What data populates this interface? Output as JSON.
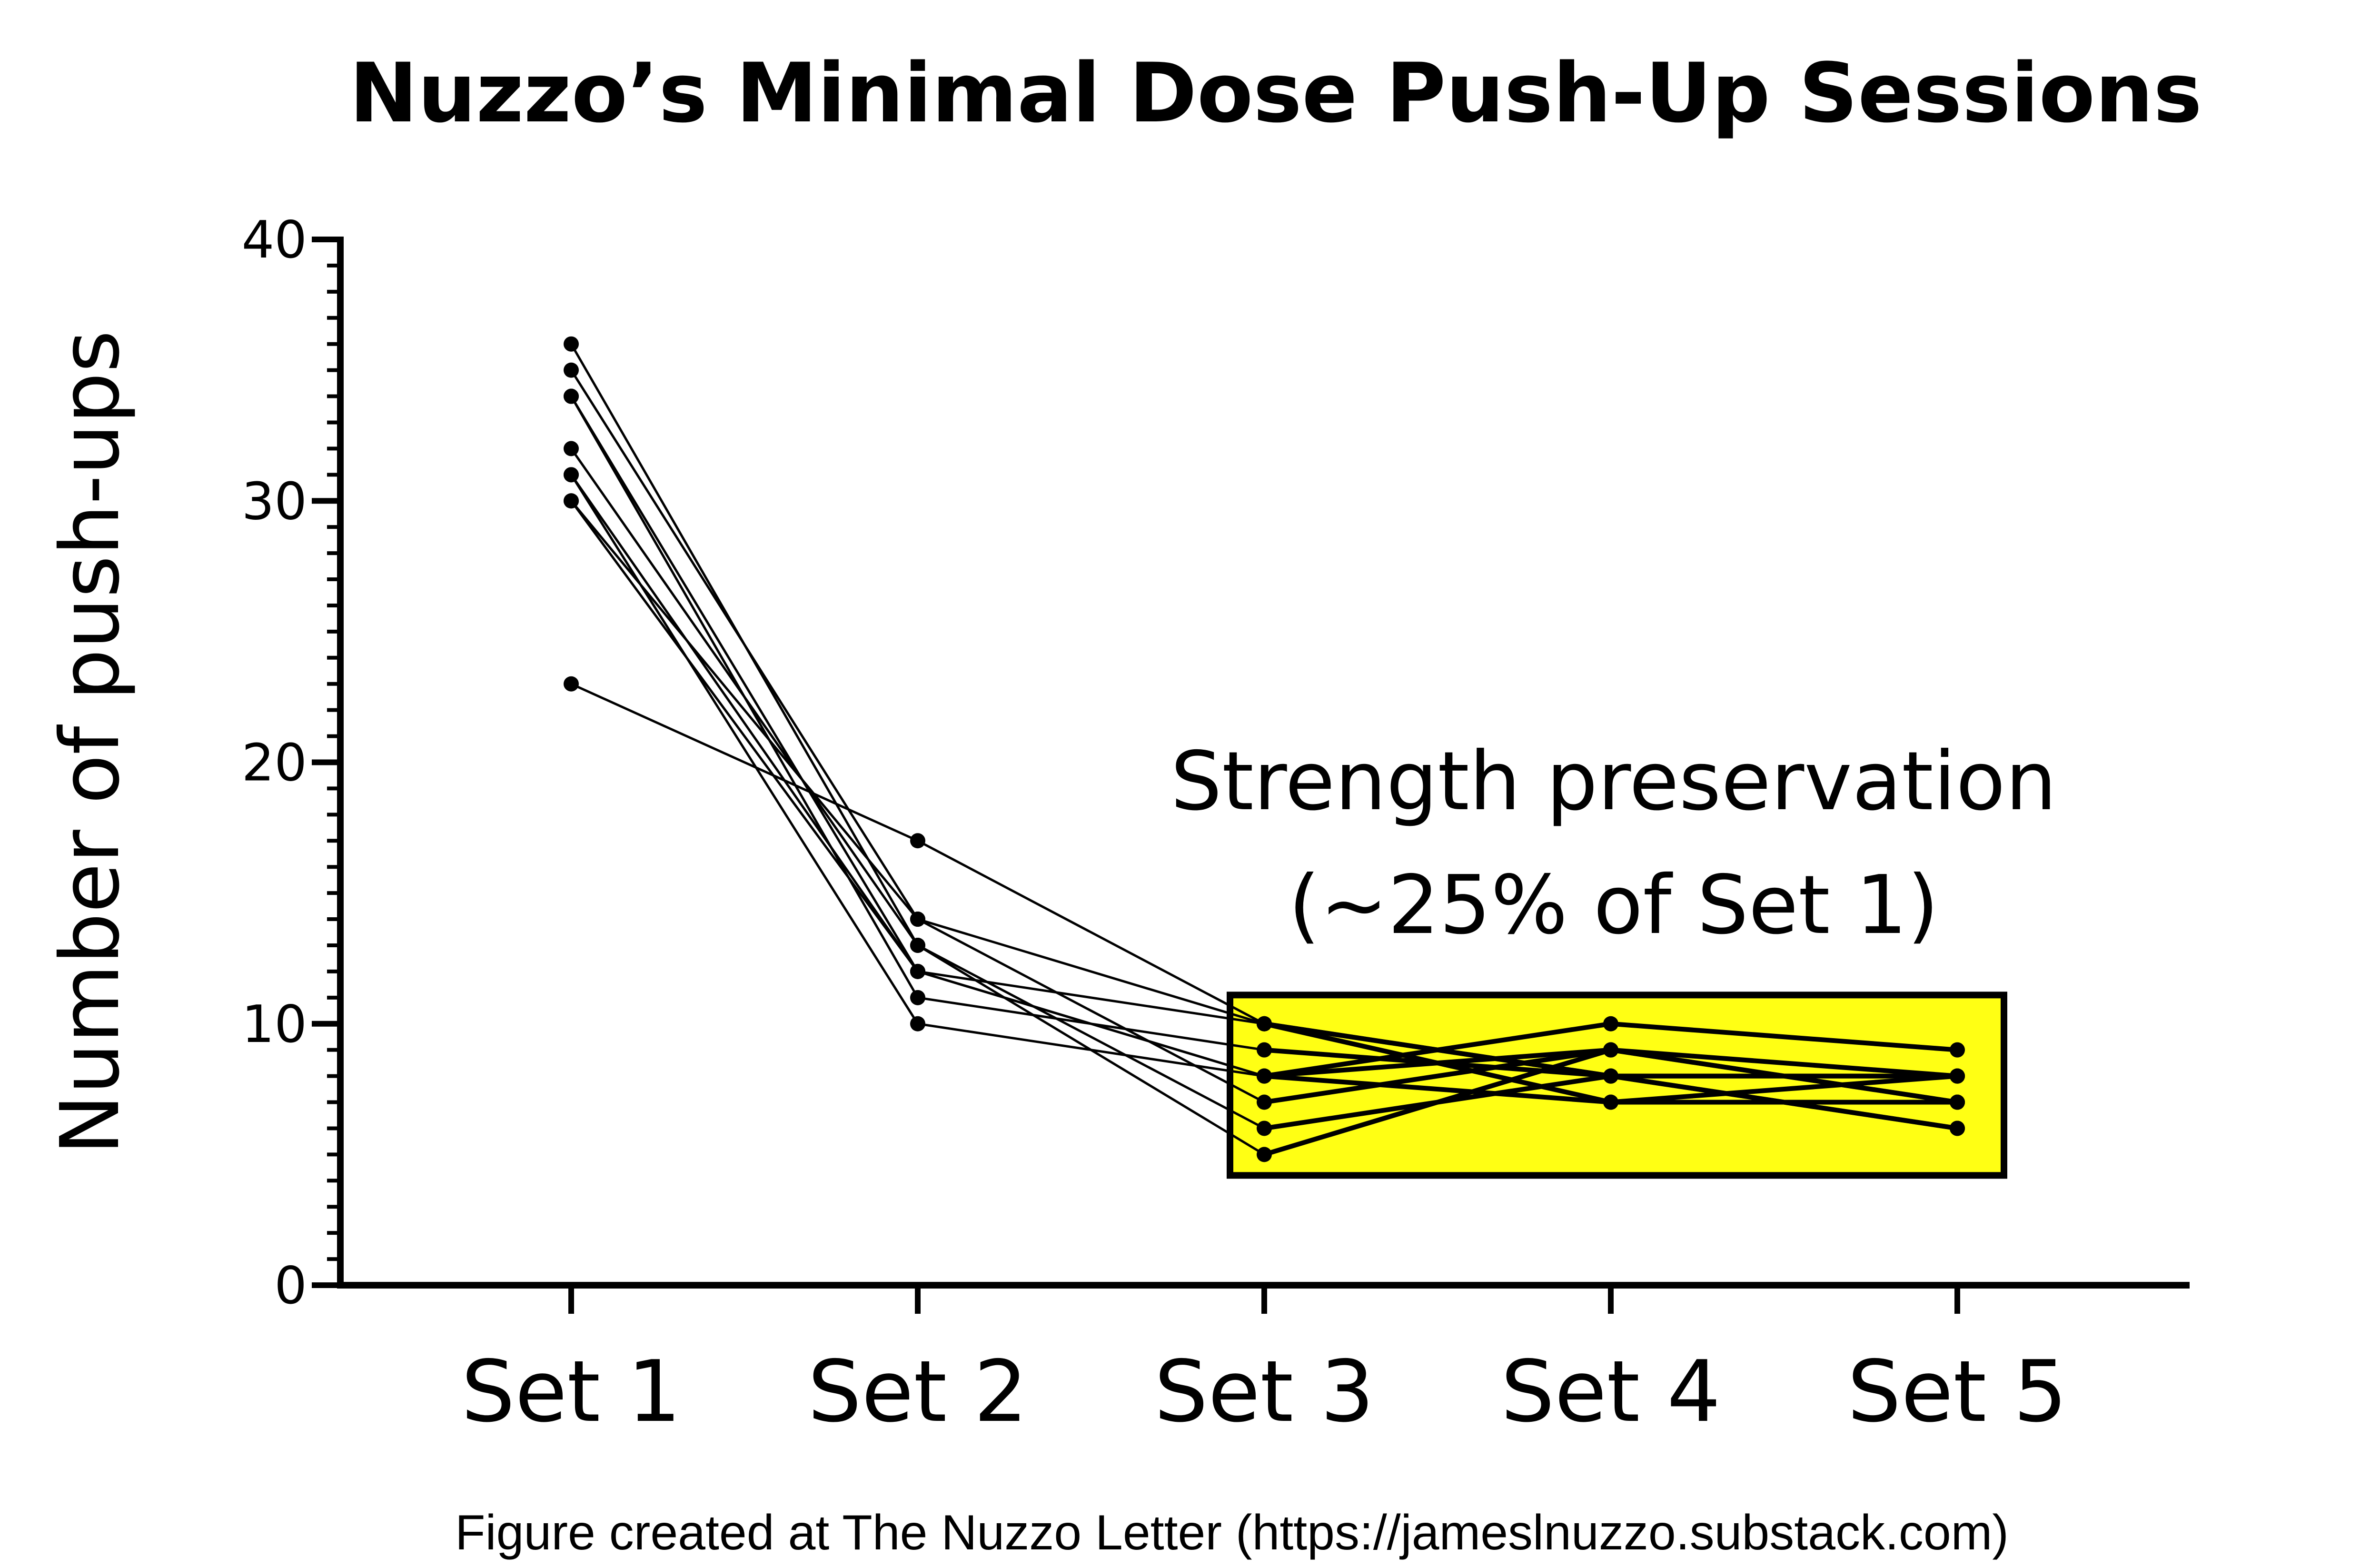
{
  "chart_data": {
    "type": "line",
    "title": "Nuzzo’s Minimal Dose Push-Up Sessions",
    "xlabel": "",
    "ylabel": "Number of push-ups",
    "categories": [
      "Set 1",
      "Set 2",
      "Set 3",
      "Set 4",
      "Set 5"
    ],
    "ylim": [
      0,
      40
    ],
    "yticks": [
      "0",
      "10",
      "20",
      "30",
      "40"
    ],
    "series": [
      {
        "values": [
          36,
          13,
          6,
          8,
          8
        ]
      },
      {
        "values": [
          35,
          14,
          7,
          9,
          7
        ]
      },
      {
        "values": [
          34,
          12,
          8,
          10,
          9
        ]
      },
      {
        "values": [
          34,
          11,
          9,
          8,
          6
        ]
      },
      {
        "values": [
          32,
          13,
          5,
          9,
          8
        ]
      },
      {
        "values": [
          31,
          12,
          10,
          7,
          7
        ]
      },
      {
        "values": [
          31,
          10,
          8,
          9,
          7
        ]
      },
      {
        "values": [
          30,
          14,
          10,
          8,
          6
        ]
      },
      {
        "values": [
          30,
          12,
          8,
          7,
          8
        ]
      },
      {
        "values": [
          23,
          17,
          10,
          8,
          8
        ]
      }
    ],
    "highlight": {
      "from_category": "Set 3",
      "to_category": "Set 5",
      "y_range": [
        4.2,
        11.1
      ],
      "color": "#ffff14"
    },
    "annotation": [
      "Strength preservation",
      "(~25% of Set 1)"
    ],
    "grid": false,
    "legend": "none",
    "line_color": "#000000"
  },
  "caption": "Figure created at The Nuzzo Letter (https://jameslnuzzo.substack.com)"
}
